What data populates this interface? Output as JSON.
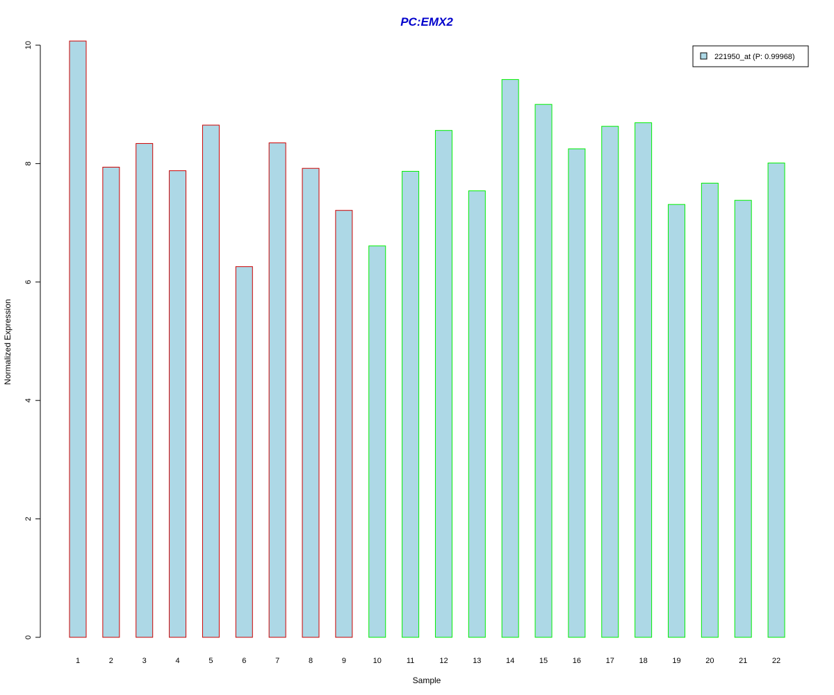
{
  "chart_data": {
    "type": "bar",
    "title": "PC:EMX2",
    "xlabel": "Sample",
    "ylabel": "Normalized Expression",
    "categories": [
      "1",
      "2",
      "3",
      "4",
      "5",
      "6",
      "7",
      "8",
      "9",
      "10",
      "11",
      "12",
      "13",
      "14",
      "15",
      "16",
      "17",
      "18",
      "19",
      "20",
      "21",
      "22"
    ],
    "series": [
      {
        "name": "221950_at (P: 0.99968)",
        "values": [
          10.07,
          7.94,
          8.34,
          7.88,
          8.65,
          6.26,
          8.35,
          7.92,
          7.21,
          6.61,
          7.87,
          8.56,
          7.54,
          9.42,
          9.0,
          8.25,
          8.63,
          8.69,
          7.31,
          7.67,
          7.38,
          8.01
        ]
      }
    ],
    "ylim": [
      0,
      10
    ],
    "yticks": [
      "0",
      "2",
      "4",
      "6",
      "8",
      "10"
    ],
    "grid": false,
    "legend_position": "top-right",
    "colors": {
      "title": "#0000cc",
      "bar_fill": "#add8e6",
      "group_a_border": "#cc0000",
      "group_b_border": "#00ee00",
      "axis": "#000000"
    },
    "border_groups": [
      "a",
      "a",
      "a",
      "a",
      "a",
      "a",
      "a",
      "a",
      "a",
      "b",
      "b",
      "b",
      "b",
      "b",
      "b",
      "b",
      "b",
      "b",
      "b",
      "b",
      "b",
      "b"
    ]
  }
}
